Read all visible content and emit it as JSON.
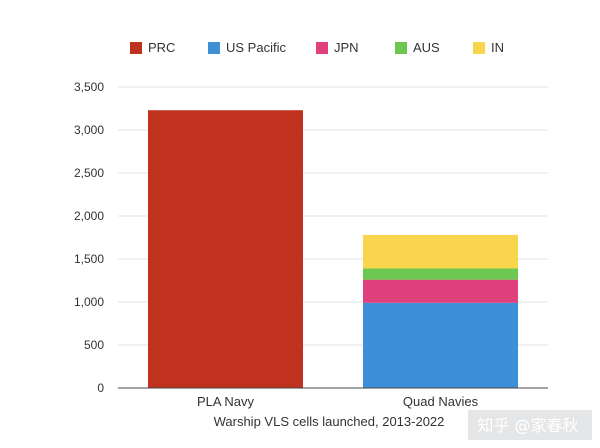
{
  "chart_data": {
    "type": "bar",
    "stacked": true,
    "categories": [
      "PLA Navy",
      "Quad Navies"
    ],
    "series": [
      {
        "name": "PRC",
        "color": "#c1321e",
        "values": [
          3230,
          0
        ]
      },
      {
        "name": "US Pacific",
        "color": "#3d8fd8",
        "values": [
          0,
          990
        ]
      },
      {
        "name": "JPN",
        "color": "#e0417d",
        "values": [
          0,
          270
        ]
      },
      {
        "name": "AUS",
        "color": "#6cc850",
        "values": [
          0,
          130
        ]
      },
      {
        "name": "IN",
        "color": "#f8d54c",
        "values": [
          0,
          390
        ]
      }
    ],
    "xlabel": "Warship VLS cells launched, 2013-2022",
    "ylabel": "",
    "ylim": [
      0,
      3500
    ],
    "yticks": [
      0,
      500,
      1000,
      1500,
      2000,
      2500,
      3000,
      3500
    ],
    "ytick_labels": [
      "0",
      "500",
      "1,000",
      "1,500",
      "2,000",
      "2,500",
      "3,000",
      "3,500"
    ],
    "grid": true,
    "legend_position": "top"
  },
  "watermark": "知乎 @家春秋"
}
